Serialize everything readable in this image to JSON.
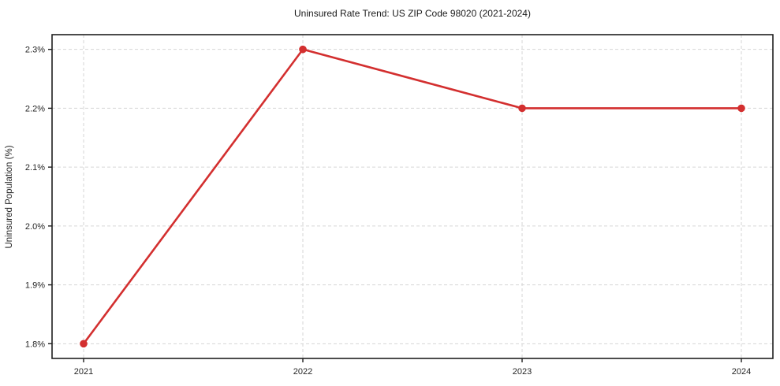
{
  "chart_data": {
    "type": "line",
    "title": "Uninsured Rate Trend: US ZIP Code 98020 (2021-2024)",
    "xlabel": "",
    "ylabel": "Uninsured Population (%)",
    "categories": [
      "2021",
      "2022",
      "2023",
      "2024"
    ],
    "series": [
      {
        "name": "uninsured-rate",
        "values": [
          1.8,
          2.3,
          2.2,
          2.2
        ],
        "color": "#d32f2f",
        "marker": "circle"
      }
    ],
    "y_ticks": [
      1.8,
      1.9,
      2.0,
      2.1,
      2.2,
      2.3
    ],
    "y_tick_labels": [
      "1.8%",
      "1.9%",
      "2.0%",
      "2.1%",
      "2.2%",
      "2.3%"
    ],
    "ylim": [
      1.775,
      2.325
    ],
    "grid": true,
    "grid_style": "dashed",
    "legend_position": "none"
  }
}
